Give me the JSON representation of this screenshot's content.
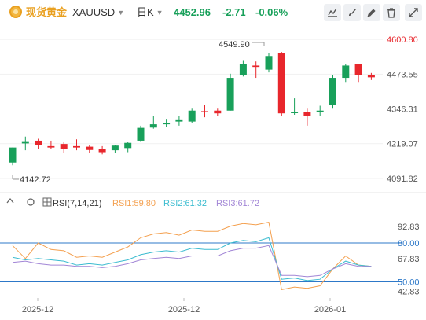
{
  "header": {
    "name": "现货黄金",
    "symbol": "XAUUSD",
    "period": "日K",
    "last_price": "4452.96",
    "change": "-2.71",
    "change_pct": "-0.06%"
  },
  "icons": [
    "settings-line-icon",
    "brush-icon",
    "pencil-icon",
    "trash-icon",
    "fullscreen-icon"
  ],
  "colors": {
    "up": "#18a05a",
    "down": "#e8262c",
    "rsi1": "#f4a04f",
    "rsi2": "#3bbcd0",
    "rsi3": "#a286d6",
    "guide": "#2d78c8"
  },
  "indicator": {
    "name": "RSI(7,14,21)",
    "rsi1_label": "RSI1:59.80",
    "rsi2_label": "RSI2:61.32",
    "rsi3_label": "RSI3:61.72"
  },
  "chart_data": {
    "type": "candlestick",
    "price_axis": {
      "min": 4060,
      "max": 4630,
      "ticks": [
        "4600.80",
        "4473.55",
        "4346.31",
        "4219.07",
        "4091.82"
      ]
    },
    "annotations": {
      "high_label": "4549.90",
      "low_label": "4142.72"
    },
    "date_labels": [
      "2025-12",
      "2025-12",
      "2026-01"
    ],
    "candles": [
      {
        "o": 4150,
        "h": 4205,
        "l": 4140,
        "c": 4205
      },
      {
        "o": 4220,
        "h": 4245,
        "l": 4195,
        "c": 4228
      },
      {
        "o": 4230,
        "h": 4237,
        "l": 4200,
        "c": 4215
      },
      {
        "o": 4210,
        "h": 4230,
        "l": 4200,
        "c": 4205
      },
      {
        "o": 4218,
        "h": 4225,
        "l": 4185,
        "c": 4200
      },
      {
        "o": 4210,
        "h": 4235,
        "l": 4195,
        "c": 4205
      },
      {
        "o": 4208,
        "h": 4215,
        "l": 4185,
        "c": 4196
      },
      {
        "o": 4200,
        "h": 4210,
        "l": 4180,
        "c": 4188
      },
      {
        "o": 4195,
        "h": 4215,
        "l": 4185,
        "c": 4212
      },
      {
        "o": 4203,
        "h": 4225,
        "l": 4188,
        "c": 4222
      },
      {
        "o": 4230,
        "h": 4285,
        "l": 4228,
        "c": 4277
      },
      {
        "o": 4278,
        "h": 4320,
        "l": 4274,
        "c": 4290
      },
      {
        "o": 4290,
        "h": 4310,
        "l": 4280,
        "c": 4295
      },
      {
        "o": 4300,
        "h": 4322,
        "l": 4285,
        "c": 4308
      },
      {
        "o": 4300,
        "h": 4350,
        "l": 4295,
        "c": 4340
      },
      {
        "o": 4338,
        "h": 4360,
        "l": 4316,
        "c": 4335
      },
      {
        "o": 4340,
        "h": 4350,
        "l": 4320,
        "c": 4330
      },
      {
        "o": 4340,
        "h": 4475,
        "l": 4340,
        "c": 4460
      },
      {
        "o": 4470,
        "h": 4525,
        "l": 4465,
        "c": 4510
      },
      {
        "o": 4505,
        "h": 4520,
        "l": 4460,
        "c": 4500
      },
      {
        "o": 4490,
        "h": 4550,
        "l": 4480,
        "c": 4540
      },
      {
        "o": 4550,
        "h": 4555,
        "l": 4320,
        "c": 4330
      },
      {
        "o": 4335,
        "h": 4385,
        "l": 4325,
        "c": 4335
      },
      {
        "o": 4335,
        "h": 4350,
        "l": 4285,
        "c": 4322
      },
      {
        "o": 4335,
        "h": 4358,
        "l": 4322,
        "c": 4340
      },
      {
        "o": 4360,
        "h": 4470,
        "l": 4350,
        "c": 4460
      },
      {
        "o": 4460,
        "h": 4510,
        "l": 4445,
        "c": 4505
      },
      {
        "o": 4510,
        "h": 4512,
        "l": 4445,
        "c": 4470
      },
      {
        "o": 4470,
        "h": 4478,
        "l": 4452,
        "c": 4462
      }
    ],
    "rsi_axis": {
      "min": 40,
      "max": 97,
      "ticks": [
        "92.83",
        "80.00",
        "67.83",
        "50.00",
        "42.83"
      ],
      "guide_levels": [
        80,
        50
      ]
    },
    "rsi_series": [
      {
        "name": "RSI1",
        "values": [
          78,
          68,
          80,
          75,
          74,
          69,
          70,
          69,
          73,
          77,
          84,
          87,
          88,
          86,
          90,
          89,
          89,
          93,
          95,
          94,
          96,
          44,
          46,
          45,
          47,
          60,
          70,
          63,
          62
        ]
      },
      {
        "name": "RSI2",
        "values": [
          69,
          67,
          68,
          67,
          66,
          63,
          64,
          63,
          65,
          67,
          71,
          73,
          74,
          73,
          76,
          75,
          75,
          80,
          82,
          81,
          84,
          52,
          53,
          51,
          52,
          60,
          66,
          63,
          62
        ]
      },
      {
        "name": "RSI3",
        "values": [
          65,
          66,
          64,
          63,
          63,
          62,
          62,
          61,
          62,
          64,
          67,
          68,
          69,
          68,
          70,
          70,
          70,
          74,
          76,
          76,
          78,
          55,
          55,
          54,
          55,
          60,
          64,
          62,
          62
        ]
      }
    ]
  }
}
